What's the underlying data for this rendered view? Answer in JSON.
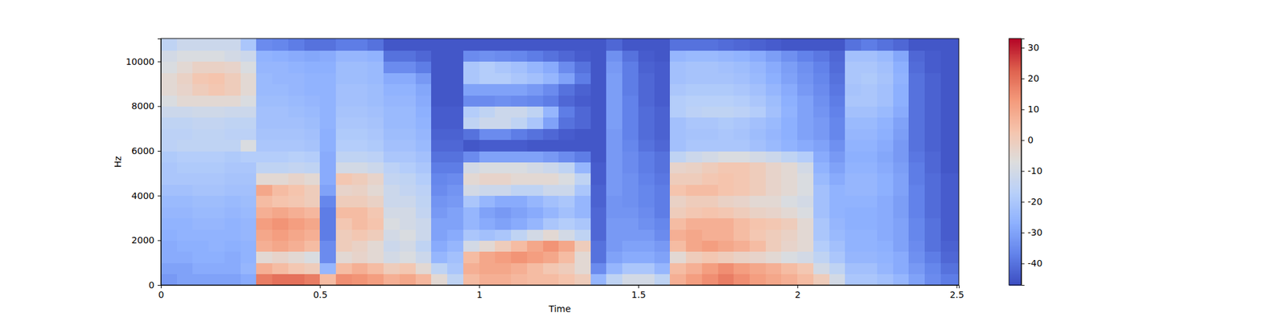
{
  "chart_data": {
    "type": "heatmap",
    "x_label": "Time",
    "y_label": "Hz",
    "x": [
      0,
      0.05,
      0.1,
      0.15,
      0.2,
      0.25,
      0.3,
      0.35,
      0.4,
      0.45,
      0.5,
      0.55,
      0.6,
      0.65,
      0.7,
      0.75,
      0.8,
      0.85,
      0.9,
      0.95,
      1,
      1.05,
      1.1,
      1.15,
      1.2,
      1.25,
      1.3,
      1.35,
      1.4,
      1.45,
      1.5,
      1.55,
      1.6,
      1.65,
      1.7,
      1.75,
      1.8,
      1.85,
      1.9,
      1.95,
      2,
      2.05,
      2.1,
      2.15,
      2.2,
      2.25,
      2.3,
      2.35,
      2.4,
      2.45,
      2.507
    ],
    "y": [
      0,
      500,
      1000,
      1500,
      2000,
      2500,
      3000,
      3500,
      4000,
      4500,
      5000,
      5500,
      6000,
      6500,
      7000,
      7500,
      8000,
      8500,
      9000,
      9500,
      10000,
      10500,
      11025
    ],
    "xlim": [
      0,
      2.507
    ],
    "ylim": [
      0,
      11025
    ],
    "xticks": [
      0,
      0.5,
      1,
      1.5,
      2,
      2.5
    ],
    "yticks": [
      0,
      2000,
      4000,
      6000,
      8000,
      10000
    ],
    "colorbar": {
      "range": [
        -47,
        33
      ],
      "ticks": [
        -40,
        -30,
        -20,
        -10,
        0,
        10,
        20,
        30
      ]
    },
    "cells": [
      [
        -32,
        -30,
        -30,
        -30,
        -30,
        -28,
        18,
        20,
        20,
        18,
        5,
        15,
        14,
        12,
        8,
        10,
        6,
        -5,
        -15,
        5,
        8,
        8,
        6,
        5,
        5,
        3,
        0,
        -25,
        -15,
        -10,
        -10,
        -15,
        8,
        12,
        15,
        18,
        15,
        12,
        10,
        8,
        5,
        0,
        -10,
        -20,
        -20,
        -22,
        -25,
        -30,
        -35,
        -38
      ],
      [
        -30,
        -30,
        -28,
        -28,
        -28,
        -25,
        8,
        5,
        2,
        0,
        -25,
        5,
        8,
        5,
        0,
        2,
        -5,
        -15,
        -20,
        8,
        10,
        10,
        8,
        5,
        2,
        0,
        -5,
        -35,
        -25,
        -20,
        -20,
        -25,
        5,
        8,
        12,
        15,
        12,
        10,
        8,
        5,
        2,
        -10,
        -15,
        -22,
        -22,
        -25,
        -28,
        -32,
        -36,
        -40
      ],
      [
        -28,
        -28,
        -27,
        -27,
        -28,
        -26,
        -5,
        -3,
        -5,
        -8,
        -35,
        -5,
        -3,
        -5,
        -10,
        -8,
        -12,
        -25,
        -22,
        5,
        10,
        12,
        14,
        12,
        10,
        5,
        -5,
        -40,
        -30,
        -28,
        -28,
        -30,
        -5,
        0,
        2,
        0,
        -2,
        -3,
        -5,
        -8,
        -10,
        -15,
        -20,
        -25,
        -25,
        -26,
        -28,
        -34,
        -38,
        -42
      ],
      [
        -28,
        -27,
        -27,
        -26,
        -27,
        -26,
        8,
        10,
        8,
        5,
        -35,
        0,
        -2,
        -5,
        -12,
        -10,
        -15,
        -28,
        -25,
        -10,
        -5,
        0,
        5,
        10,
        14,
        10,
        0,
        -40,
        -32,
        -30,
        -30,
        -32,
        5,
        10,
        12,
        10,
        8,
        5,
        0,
        -3,
        -5,
        -18,
        -22,
        -26,
        -26,
        -27,
        -30,
        -35,
        -40,
        -43
      ],
      [
        -27,
        -26,
        -26,
        -26,
        -26,
        -25,
        10,
        12,
        10,
        8,
        -38,
        0,
        2,
        0,
        -10,
        -8,
        -12,
        -30,
        -28,
        -20,
        -22,
        -20,
        -15,
        -10,
        -5,
        -10,
        -15,
        -42,
        -32,
        -32,
        -32,
        -35,
        8,
        10,
        8,
        8,
        5,
        2,
        0,
        -2,
        -5,
        -20,
        -24,
        -26,
        -26,
        -28,
        -30,
        -36,
        -40,
        -44
      ],
      [
        -26,
        -26,
        -25,
        -25,
        -26,
        -25,
        12,
        14,
        12,
        10,
        -38,
        2,
        5,
        3,
        -8,
        -10,
        -12,
        -30,
        -30,
        -25,
        -28,
        -30,
        -28,
        -25,
        -20,
        -18,
        -20,
        -42,
        -32,
        -32,
        -34,
        -36,
        5,
        8,
        8,
        8,
        5,
        3,
        2,
        0,
        -5,
        -20,
        -25,
        -27,
        -27,
        -28,
        -30,
        -36,
        -40,
        -44
      ],
      [
        -25,
        -25,
        -24,
        -24,
        -25,
        -24,
        8,
        10,
        8,
        6,
        -38,
        5,
        5,
        2,
        -10,
        -10,
        -14,
        -32,
        -30,
        -25,
        -30,
        -32,
        -30,
        -28,
        -25,
        -22,
        -25,
        -42,
        -33,
        -33,
        -35,
        -38,
        0,
        2,
        3,
        2,
        0,
        -2,
        -3,
        -5,
        -8,
        -22,
        -26,
        -27,
        -27,
        -28,
        -31,
        -37,
        -41,
        -44
      ],
      [
        -24,
        -24,
        -23,
        -23,
        -24,
        -23,
        5,
        3,
        2,
        0,
        -36,
        0,
        0,
        -2,
        -12,
        -12,
        -15,
        -33,
        -32,
        -20,
        -25,
        -28,
        -28,
        -25,
        -22,
        -20,
        -25,
        -43,
        -33,
        -34,
        -36,
        -38,
        -2,
        0,
        0,
        -2,
        -3,
        -5,
        -5,
        -8,
        -10,
        -22,
        -26,
        -26,
        -26,
        -28,
        -31,
        -37,
        -41,
        -44
      ],
      [
        -22,
        -22,
        -21,
        -21,
        -22,
        -22,
        10,
        5,
        3,
        0,
        -30,
        -3,
        -2,
        -5,
        -12,
        -14,
        -16,
        -35,
        -33,
        -10,
        -12,
        -12,
        -15,
        -15,
        -12,
        -12,
        -20,
        -43,
        -32,
        -34,
        -36,
        -38,
        3,
        5,
        5,
        3,
        2,
        0,
        -3,
        -5,
        -8,
        -22,
        -26,
        -25,
        -25,
        -27,
        -30,
        -37,
        -41,
        -44
      ],
      [
        -20,
        -20,
        -20,
        -20,
        -21,
        -21,
        -5,
        -5,
        -3,
        -5,
        -28,
        2,
        0,
        -3,
        -14,
        -15,
        -18,
        -36,
        -35,
        -5,
        -3,
        -3,
        -5,
        -5,
        -5,
        -8,
        -15,
        -44,
        -32,
        -34,
        -37,
        -39,
        0,
        0,
        2,
        3,
        2,
        0,
        -3,
        -5,
        -8,
        -24,
        -28,
        -25,
        -25,
        -27,
        -30,
        -38,
        -41,
        -44
      ],
      [
        -20,
        -19,
        -19,
        -19,
        -20,
        -20,
        -15,
        -15,
        -14,
        -15,
        -28,
        -10,
        -10,
        -12,
        -16,
        -18,
        -20,
        -38,
        -38,
        -10,
        -8,
        -8,
        -8,
        -10,
        -12,
        -15,
        -25,
        -44,
        -32,
        -35,
        -38,
        -40,
        -3,
        -2,
        0,
        2,
        2,
        0,
        -3,
        -5,
        -10,
        -26,
        -30,
        -26,
        -26,
        -28,
        -31,
        -38,
        -42,
        -45
      ],
      [
        -19,
        -18,
        -18,
        -18,
        -19,
        -18,
        -18,
        -18,
        -17,
        -18,
        -28,
        -15,
        -15,
        -16,
        -20,
        -20,
        -22,
        -40,
        -40,
        -35,
        -30,
        -30,
        -30,
        -30,
        -32,
        -35,
        -38,
        -45,
        -32,
        -35,
        -38,
        -40,
        -15,
        -12,
        -10,
        -8,
        -8,
        -10,
        -12,
        -15,
        -18,
        -28,
        -32,
        -27,
        -27,
        -29,
        -32,
        -39,
        -42,
        -45
      ],
      [
        -16,
        -15,
        -15,
        -15,
        -15,
        -8,
        -20,
        -20,
        -20,
        -21,
        -27,
        -18,
        -18,
        -19,
        -22,
        -22,
        -24,
        -42,
        -42,
        -45,
        -44,
        -44,
        -44,
        -45,
        -45,
        -45,
        -45,
        -45,
        -32,
        -36,
        -40,
        -42,
        -22,
        -20,
        -20,
        -20,
        -20,
        -22,
        -24,
        -26,
        -28,
        -30,
        -34,
        -26,
        -26,
        -28,
        -32,
        -40,
        -43,
        -45
      ],
      [
        -16,
        -16,
        -15,
        -15,
        -16,
        -16,
        -21,
        -21,
        -21,
        -22,
        -27,
        -19,
        -19,
        -20,
        -23,
        -23,
        -25,
        -43,
        -43,
        -40,
        -35,
        -35,
        -38,
        -40,
        -42,
        -44,
        -45,
        -45,
        -32,
        -37,
        -41,
        -43,
        -22,
        -21,
        -21,
        -20,
        -21,
        -23,
        -25,
        -27,
        -30,
        -32,
        -36,
        -25,
        -25,
        -27,
        -31,
        -40,
        -43,
        -45
      ],
      [
        -15,
        -15,
        -14,
        -14,
        -15,
        -15,
        -22,
        -22,
        -22,
        -23,
        -26,
        -20,
        -20,
        -21,
        -24,
        -24,
        -26,
        -44,
        -44,
        -15,
        -12,
        -12,
        -15,
        -20,
        -30,
        -40,
        -42,
        -45,
        -31,
        -37,
        -41,
        -43,
        -22,
        -20,
        -20,
        -19,
        -20,
        -22,
        -24,
        -27,
        -30,
        -32,
        -36,
        -24,
        -24,
        -26,
        -30,
        -40,
        -43,
        -45
      ],
      [
        -12,
        -12,
        -11,
        -11,
        -12,
        -12,
        -22,
        -22,
        -23,
        -24,
        -26,
        -21,
        -21,
        -22,
        -24,
        -24,
        -27,
        -44,
        -44,
        -18,
        -15,
        -12,
        -12,
        -15,
        -25,
        -38,
        -42,
        -45,
        -31,
        -37,
        -41,
        -43,
        -18,
        -16,
        -15,
        -15,
        -16,
        -18,
        -22,
        -26,
        -30,
        -33,
        -37,
        -22,
        -22,
        -24,
        -28,
        -40,
        -43,
        -45
      ],
      [
        -8,
        -5,
        -5,
        -5,
        -5,
        -8,
        -23,
        -23,
        -24,
        -25,
        -26,
        -22,
        -22,
        -23,
        -25,
        -25,
        -28,
        -45,
        -45,
        -35,
        -35,
        -34,
        -35,
        -36,
        -38,
        -42,
        -44,
        -45,
        -31,
        -37,
        -42,
        -44,
        -18,
        -17,
        -17,
        -17,
        -18,
        -20,
        -23,
        -27,
        -30,
        -34,
        -38,
        -20,
        -20,
        -22,
        -27,
        -40,
        -43,
        -45
      ],
      [
        -5,
        -3,
        0,
        2,
        0,
        -5,
        -24,
        -24,
        -25,
        -26,
        -26,
        -22,
        -22,
        -23,
        -26,
        -26,
        -29,
        -45,
        -45,
        -30,
        -30,
        -30,
        -30,
        -32,
        -35,
        -40,
        -43,
        -45,
        -31,
        -38,
        -42,
        -44,
        -20,
        -19,
        -19,
        -19,
        -20,
        -22,
        -25,
        -28,
        -32,
        -35,
        -39,
        -21,
        -20,
        -22,
        -27,
        -40,
        -43,
        -45
      ],
      [
        -5,
        -2,
        2,
        3,
        0,
        -5,
        -24,
        -25,
        -25,
        -26,
        -26,
        -23,
        -23,
        -24,
        -28,
        -28,
        -32,
        -45,
        -45,
        -20,
        -18,
        -18,
        -20,
        -22,
        -25,
        -30,
        -38,
        -45,
        -31,
        -38,
        -42,
        -44,
        -22,
        -21,
        -21,
        -21,
        -22,
        -24,
        -27,
        -30,
        -33,
        -36,
        -40,
        -20,
        -19,
        -21,
        -26,
        -40,
        -43,
        -45
      ],
      [
        -8,
        -5,
        -2,
        -2,
        -3,
        -8,
        -25,
        -25,
        -26,
        -27,
        -27,
        -23,
        -23,
        -24,
        -35,
        -35,
        -38,
        -45,
        -45,
        -20,
        -18,
        -20,
        -22,
        -25,
        -28,
        -35,
        -40,
        -45,
        -32,
        -38,
        -43,
        -44,
        -22,
        -21,
        -21,
        -22,
        -23,
        -25,
        -28,
        -31,
        -34,
        -37,
        -41,
        -20,
        -20,
        -22,
        -27,
        -41,
        -44,
        -45
      ],
      [
        -10,
        -8,
        -8,
        -8,
        -10,
        -12,
        -26,
        -27,
        -28,
        -29,
        -28,
        -25,
        -25,
        -26,
        -40,
        -40,
        -42,
        -45,
        -45,
        -35,
        -34,
        -35,
        -36,
        -38,
        -40,
        -42,
        -44,
        -45,
        -34,
        -40,
        -44,
        -45,
        -25,
        -24,
        -24,
        -25,
        -26,
        -28,
        -31,
        -34,
        -37,
        -39,
        -42,
        -22,
        -22,
        -24,
        -29,
        -42,
        -44,
        -45
      ],
      [
        -15,
        -12,
        -12,
        -12,
        -12,
        -20,
        -35,
        -36,
        -38,
        -40,
        -40,
        -38,
        -38,
        -40,
        -45,
        -45,
        -45,
        -45,
        -45,
        -45,
        -45,
        -45,
        -45,
        -45,
        -45,
        -45,
        -45,
        -45,
        -42,
        -45,
        -45,
        -45,
        -40,
        -40,
        -40,
        -41,
        -42,
        -43,
        -44,
        -45,
        -45,
        -45,
        -45,
        -40,
        -38,
        -40,
        -42,
        -45,
        -45,
        -45
      ]
    ]
  }
}
